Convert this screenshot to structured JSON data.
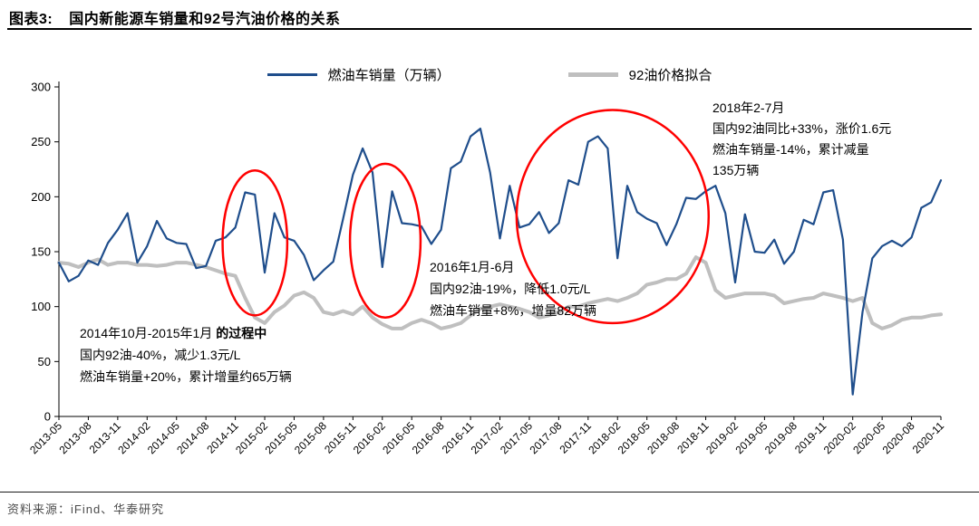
{
  "header": {
    "title_prefix": "图表3:",
    "title_text": "国内新能源车销量和92号汽油价格的关系"
  },
  "footer": {
    "source_text": "资料来源：iFind、华泰研究"
  },
  "chart_data": {
    "type": "line",
    "title": "国内新能源车销量和92号汽油价格的关系",
    "ylim": [
      0,
      300
    ],
    "yticks": [
      0,
      50,
      100,
      150,
      200,
      250,
      300
    ],
    "x_tick_every": 3,
    "grid": false,
    "legend_position": "top",
    "x": [
      "2013-05",
      "2013-06",
      "2013-07",
      "2013-08",
      "2013-09",
      "2013-10",
      "2013-11",
      "2013-12",
      "2014-01",
      "2014-02",
      "2014-03",
      "2014-04",
      "2014-05",
      "2014-06",
      "2014-07",
      "2014-08",
      "2014-09",
      "2014-10",
      "2014-11",
      "2014-12",
      "2015-01",
      "2015-02",
      "2015-03",
      "2015-04",
      "2015-05",
      "2015-06",
      "2015-07",
      "2015-08",
      "2015-09",
      "2015-10",
      "2015-11",
      "2015-12",
      "2016-01",
      "2016-02",
      "2016-03",
      "2016-04",
      "2016-05",
      "2016-06",
      "2016-07",
      "2016-08",
      "2016-09",
      "2016-10",
      "2016-11",
      "2016-12",
      "2017-01",
      "2017-02",
      "2017-03",
      "2017-04",
      "2017-05",
      "2017-06",
      "2017-07",
      "2017-08",
      "2017-09",
      "2017-10",
      "2017-11",
      "2017-12",
      "2018-01",
      "2018-02",
      "2018-03",
      "2018-04",
      "2018-05",
      "2018-06",
      "2018-07",
      "2018-08",
      "2018-09",
      "2018-10",
      "2018-11",
      "2018-12",
      "2019-01",
      "2019-02",
      "2019-03",
      "2019-04",
      "2019-05",
      "2019-06",
      "2019-07",
      "2019-08",
      "2019-09",
      "2019-10",
      "2019-11",
      "2019-12",
      "2020-01",
      "2020-02",
      "2020-03",
      "2020-04",
      "2020-05",
      "2020-06",
      "2020-07",
      "2020-08",
      "2020-09",
      "2020-10",
      "2020-11"
    ],
    "series": [
      {
        "name": "燃油车销量（万辆）",
        "color": "#1F4E8C",
        "width": 2.2,
        "values": [
          140,
          123,
          128,
          142,
          138,
          158,
          170,
          185,
          140,
          155,
          178,
          162,
          158,
          157,
          135,
          137,
          160,
          163,
          172,
          204,
          202,
          131,
          185,
          163,
          160,
          147,
          124,
          133,
          141,
          180,
          220,
          244,
          222,
          136,
          205,
          176,
          175,
          173,
          157,
          170,
          226,
          232,
          255,
          262,
          222,
          162,
          210,
          172,
          175,
          186,
          167,
          176,
          215,
          211,
          250,
          255,
          244,
          144,
          210,
          186,
          180,
          176,
          156,
          175,
          199,
          198,
          205,
          210,
          185,
          122,
          184,
          150,
          149,
          161,
          139,
          150,
          179,
          175,
          204,
          206,
          161,
          20,
          95,
          144,
          155,
          160,
          155,
          163,
          190,
          195,
          215
        ]
      },
      {
        "name": "92油价格拟合",
        "color": "#BFBFBF",
        "width": 4,
        "values": [
          140,
          139,
          136,
          140,
          143,
          138,
          140,
          140,
          138,
          138,
          137,
          138,
          140,
          140,
          138,
          136,
          133,
          130,
          128,
          108,
          90,
          85,
          95,
          101,
          110,
          113,
          108,
          95,
          93,
          96,
          93,
          100,
          90,
          84,
          80,
          80,
          85,
          88,
          85,
          80,
          82,
          85,
          92,
          98,
          100,
          102,
          100,
          98,
          95,
          90,
          92,
          95,
          100,
          100,
          103,
          105,
          107,
          105,
          108,
          112,
          120,
          122,
          125,
          125,
          130,
          145,
          140,
          115,
          108,
          110,
          112,
          112,
          112,
          110,
          103,
          105,
          107,
          108,
          112,
          110,
          108,
          105,
          108,
          85,
          80,
          83,
          88,
          90,
          90,
          92,
          93
        ]
      }
    ],
    "highlight_color": "#FF0000",
    "highlight_ellipses": [
      {
        "cx_index": 20.0,
        "cy_value": 158,
        "rx_index": 3.3,
        "ry_value": 66
      },
      {
        "cx_index": 33.3,
        "cy_value": 160,
        "rx_index": 3.6,
        "ry_value": 70
      },
      {
        "cx_index": 56.5,
        "cy_value": 182,
        "rx_index": 9.8,
        "ry_value": 97
      }
    ],
    "annotations": [
      {
        "line1_normal": "2014年10月-2015年1月",
        "line1_bold": " 的过程中",
        "line2": "国内92油-40%，减少1.3元/L",
        "line3": "燃油车销量+20%，累计增量约65万辆"
      },
      {
        "line1": "2016年1月-6月",
        "line2": "国内92油-19%，降低1.0元/L",
        "line3": "燃油车销量+8%，增量82万辆"
      },
      {
        "line1": "2018年2-7月",
        "line2": "国内92油同比+33%，涨价1.6元",
        "line3": "燃油车销量-14%，累计减量",
        "line4": "135万辆"
      }
    ]
  }
}
